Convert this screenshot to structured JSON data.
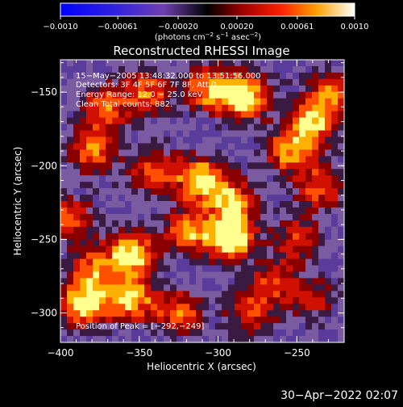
{
  "colorbar": {
    "tick_labels": [
      "−0.0010",
      "−0.00061",
      "−0.00020",
      "0.00020",
      "0.00061",
      "0.0010"
    ],
    "tick_values": [
      -0.001,
      -0.00061,
      -0.0002,
      0.0002,
      0.00061,
      0.001
    ],
    "range": [
      -0.001,
      0.001
    ],
    "units": {
      "prefix": "(photons cm",
      "exp1": "−2",
      "mid": " s",
      "exp2": "−1",
      "mid2": " asec",
      "exp3": "−2",
      "suffix": ")"
    }
  },
  "plot": {
    "title": "Reconstructed RHESSI Image",
    "xlabel": "Heliocentric X (arcsec)",
    "ylabel": "Heliocentric Y (arcsec)",
    "xlim": [
      -400,
      -220
    ],
    "ylim": [
      -320,
      -128
    ],
    "x_ticks": [
      -400,
      -350,
      -300,
      -250
    ],
    "x_tick_labels": [
      "−400",
      "−350",
      "−300",
      "−250"
    ],
    "y_ticks": [
      -150,
      -200,
      -250,
      -300
    ],
    "y_tick_labels": [
      "−150",
      "−200",
      "−250",
      "−300"
    ],
    "annotations": {
      "time": "15−May−2005 13:48:32.000 to 13:51:56.000",
      "detectors": "Detectors: 3F 4F 5F 6F 7F 8F, Att 0",
      "energy": "Energy Range: 12.0 − 25.0 keV",
      "counts": "Clean    Total counts: 882.",
      "peak": "Position of Peak = [−292,−249]"
    },
    "peak": [
      -292,
      -249
    ],
    "colors": {
      "low": "#0000ff",
      "mid_low": "#6040a0",
      "mid": "#000000",
      "high_1": "#b00000",
      "high_2": "#ff6000",
      "high_3": "#ffff80"
    }
  },
  "footer": {
    "timestamp": "30−Apr−2022 02:07"
  }
}
